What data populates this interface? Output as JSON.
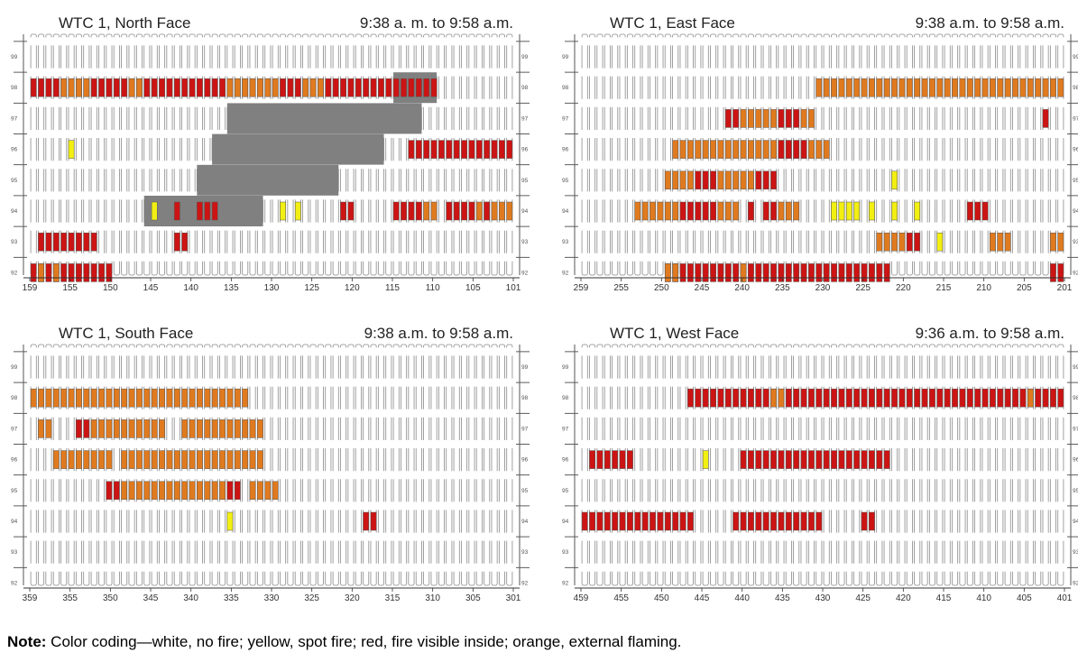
{
  "colors": {
    "none": "#ffffff",
    "yellow": "#f2ef12",
    "red": "#cc1414",
    "orange": "#e07a1f",
    "debris": "#808080",
    "outline": "#8a8a8a"
  },
  "panels": [
    {
      "title": "WTC 1, North Face",
      "time": "9:38 a. m. to 9:58 a.m.",
      "column_labels": [
        "159",
        "155",
        "150",
        "145",
        "140",
        "135",
        "130",
        "125",
        "120",
        "115",
        "110",
        "105",
        "101"
      ],
      "floor_labels": [
        "99",
        "98",
        "97",
        "96",
        "95",
        "94",
        "93",
        "92"
      ],
      "floors": {
        "98": [
          {
            "s": 0,
            "e": 17,
            "c": "R"
          },
          {
            "s": 4,
            "e": 7,
            "c": "O"
          },
          {
            "s": 13,
            "e": 14,
            "c": "O"
          },
          {
            "s": 18,
            "e": 40,
            "c": "R"
          },
          {
            "s": 26,
            "e": 32,
            "c": "O"
          },
          {
            "s": 36,
            "e": 38,
            "c": "O"
          },
          {
            "s": 41,
            "e": 47,
            "c": "R"
          },
          {
            "s": 48,
            "e": 53,
            "c": "R"
          }
        ],
        "96": [
          {
            "s": 5,
            "e": 5,
            "c": "Y"
          },
          {
            "s": 50,
            "e": 63,
            "c": "R"
          }
        ],
        "94": [
          {
            "s": 16,
            "e": 16,
            "c": "Y"
          },
          {
            "s": 19,
            "e": 19,
            "c": "R"
          },
          {
            "s": 22,
            "e": 24,
            "c": "R"
          },
          {
            "s": 33,
            "e": 33,
            "c": "Y"
          },
          {
            "s": 35,
            "e": 35,
            "c": "Y"
          },
          {
            "s": 41,
            "e": 42,
            "c": "R"
          },
          {
            "s": 48,
            "e": 51,
            "c": "R"
          },
          {
            "s": 52,
            "e": 53,
            "c": "O"
          },
          {
            "s": 55,
            "e": 58,
            "c": "R"
          },
          {
            "s": 59,
            "e": 63,
            "c": "O"
          },
          {
            "s": 60,
            "e": 60,
            "c": "R"
          }
        ],
        "93": [
          {
            "s": 1,
            "e": 4,
            "c": "R"
          },
          {
            "s": 5,
            "e": 8,
            "c": "R"
          },
          {
            "s": 19,
            "e": 20,
            "c": "R"
          }
        ],
        "92": [
          {
            "s": 0,
            "e": 10,
            "c": "R"
          },
          {
            "s": 1,
            "e": 1,
            "c": "O"
          },
          {
            "s": 3,
            "e": 3,
            "c": "O"
          }
        ]
      },
      "debris_blocks": [
        {
          "f": "98",
          "s": 48,
          "e": 53
        },
        {
          "f": "97",
          "s": 26,
          "e": 51
        },
        {
          "f": "96",
          "s": 24,
          "e": 46
        },
        {
          "f": "95",
          "s": 22,
          "e": 40
        },
        {
          "f": "94",
          "s": 15,
          "e": 30
        }
      ]
    },
    {
      "title": "WTC 1, East Face",
      "time": "9:38 a.m. to 9:58 a.m.",
      "column_labels": [
        "259",
        "255",
        "250",
        "245",
        "240",
        "235",
        "230",
        "225",
        "220",
        "215",
        "210",
        "205",
        "201"
      ],
      "floor_labels": [
        "99",
        "98",
        "97",
        "96",
        "95",
        "94",
        "93",
        "92"
      ],
      "floors": {
        "98": [
          {
            "s": 31,
            "e": 63,
            "c": "O"
          }
        ],
        "97": [
          {
            "s": 19,
            "e": 20,
            "c": "R"
          },
          {
            "s": 21,
            "e": 25,
            "c": "O"
          },
          {
            "s": 26,
            "e": 28,
            "c": "R"
          },
          {
            "s": 29,
            "e": 30,
            "c": "O"
          },
          {
            "s": 61,
            "e": 61,
            "c": "R"
          }
        ],
        "96": [
          {
            "s": 12,
            "e": 32,
            "c": "O"
          },
          {
            "s": 26,
            "e": 29,
            "c": "R"
          }
        ],
        "95": [
          {
            "s": 11,
            "e": 14,
            "c": "O"
          },
          {
            "s": 15,
            "e": 17,
            "c": "R"
          },
          {
            "s": 18,
            "e": 22,
            "c": "O"
          },
          {
            "s": 23,
            "e": 25,
            "c": "R"
          },
          {
            "s": 41,
            "e": 41,
            "c": "Y"
          }
        ],
        "94": [
          {
            "s": 7,
            "e": 12,
            "c": "O"
          },
          {
            "s": 13,
            "e": 17,
            "c": "R"
          },
          {
            "s": 18,
            "e": 20,
            "c": "O"
          },
          {
            "s": 22,
            "e": 22,
            "c": "R"
          },
          {
            "s": 24,
            "e": 25,
            "c": "R"
          },
          {
            "s": 26,
            "e": 28,
            "c": "O"
          },
          {
            "s": 33,
            "e": 36,
            "c": "Y"
          },
          {
            "s": 38,
            "e": 38,
            "c": "Y"
          },
          {
            "s": 41,
            "e": 41,
            "c": "Y"
          },
          {
            "s": 44,
            "e": 44,
            "c": "Y"
          },
          {
            "s": 51,
            "e": 53,
            "c": "R"
          }
        ],
        "93": [
          {
            "s": 39,
            "e": 42,
            "c": "O"
          },
          {
            "s": 43,
            "e": 44,
            "c": "R"
          },
          {
            "s": 47,
            "e": 47,
            "c": "Y"
          },
          {
            "s": 54,
            "e": 56,
            "c": "O"
          },
          {
            "s": 62,
            "e": 63,
            "c": "O"
          }
        ],
        "92": [
          {
            "s": 11,
            "e": 40,
            "c": "R"
          },
          {
            "s": 11,
            "e": 12,
            "c": "O"
          },
          {
            "s": 21,
            "e": 21,
            "c": "O"
          },
          {
            "s": 62,
            "e": 63,
            "c": "R"
          }
        ]
      },
      "debris_blocks": []
    },
    {
      "title": "WTC 1, South Face",
      "time": "9:38 a.m. to 9:58 a.m.",
      "column_labels": [
        "359",
        "355",
        "350",
        "345",
        "340",
        "335",
        "330",
        "325",
        "320",
        "315",
        "310",
        "305",
        "301"
      ],
      "floor_labels": [
        "99",
        "98",
        "97",
        "96",
        "95",
        "94",
        "93",
        "92"
      ],
      "floors": {
        "98": [
          {
            "s": 0,
            "e": 28,
            "c": "O"
          }
        ],
        "97": [
          {
            "s": 1,
            "e": 2,
            "c": "O"
          },
          {
            "s": 6,
            "e": 7,
            "c": "R"
          },
          {
            "s": 8,
            "e": 17,
            "c": "O"
          },
          {
            "s": 20,
            "e": 30,
            "c": "O"
          }
        ],
        "96": [
          {
            "s": 3,
            "e": 10,
            "c": "O"
          },
          {
            "s": 12,
            "e": 30,
            "c": "O"
          }
        ],
        "95": [
          {
            "s": 10,
            "e": 11,
            "c": "R"
          },
          {
            "s": 12,
            "e": 25,
            "c": "O"
          },
          {
            "s": 26,
            "e": 27,
            "c": "R"
          },
          {
            "s": 29,
            "e": 32,
            "c": "O"
          }
        ],
        "94": [
          {
            "s": 26,
            "e": 26,
            "c": "Y"
          },
          {
            "s": 44,
            "e": 45,
            "c": "R"
          }
        ]
      },
      "debris_blocks": []
    },
    {
      "title": "WTC 1, West Face",
      "time": "9:36 a.m. to 9:58 a.m.",
      "column_labels": [
        "459",
        "455",
        "450",
        "445",
        "440",
        "435",
        "430",
        "425",
        "420",
        "415",
        "410",
        "405",
        "401"
      ],
      "floor_labels": [
        "99",
        "98",
        "97",
        "96",
        "95",
        "94",
        "93",
        "92"
      ],
      "floors": {
        "98": [
          {
            "s": 14,
            "e": 63,
            "c": "R"
          },
          {
            "s": 25,
            "e": 26,
            "c": "O"
          },
          {
            "s": 59,
            "e": 59,
            "c": "O"
          }
        ],
        "96": [
          {
            "s": 1,
            "e": 6,
            "c": "R"
          },
          {
            "s": 16,
            "e": 16,
            "c": "Y"
          },
          {
            "s": 21,
            "e": 40,
            "c": "R"
          }
        ],
        "94": [
          {
            "s": 0,
            "e": 14,
            "c": "R"
          },
          {
            "s": 20,
            "e": 31,
            "c": "R"
          },
          {
            "s": 37,
            "e": 38,
            "c": "R"
          }
        ]
      },
      "debris_blocks": []
    }
  ],
  "note": {
    "label": "Note:",
    "text": " Color coding—white, no fire; yellow, spot fire; red, fire visible inside; orange, external flaming."
  }
}
